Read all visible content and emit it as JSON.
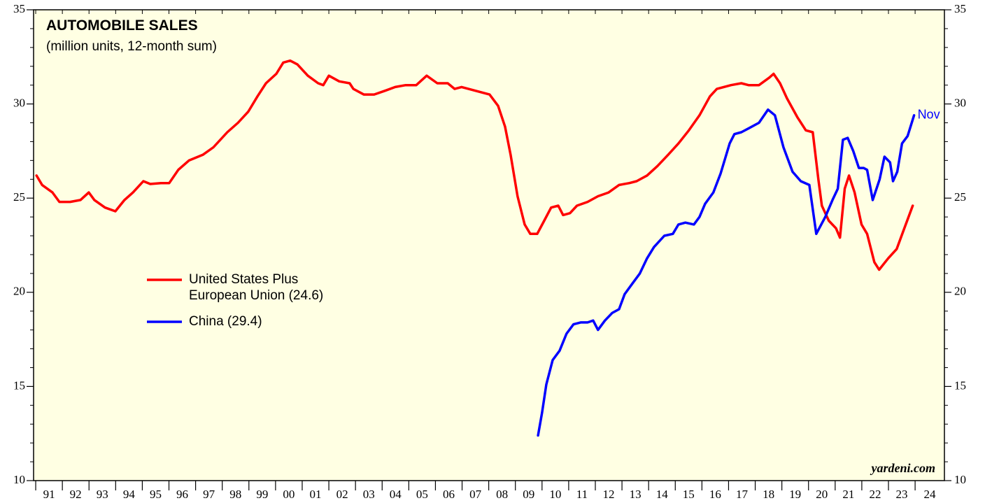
{
  "chart_data": {
    "type": "line",
    "title": "AUTOMOBILE SALES",
    "subtitle": "(million units, 12-month sum)",
    "annotation": "Nov",
    "source": "yardeni.com",
    "xlim": [
      1990.92,
      2025.1
    ],
    "xticks": [
      {
        "value": 1991,
        "label": "91"
      },
      {
        "value": 1992,
        "label": "92"
      },
      {
        "value": 1993,
        "label": "93"
      },
      {
        "value": 1994,
        "label": "94"
      },
      {
        "value": 1995,
        "label": "95"
      },
      {
        "value": 1996,
        "label": "96"
      },
      {
        "value": 1997,
        "label": "97"
      },
      {
        "value": 1998,
        "label": "98"
      },
      {
        "value": 1999,
        "label": "99"
      },
      {
        "value": 2000,
        "label": "00"
      },
      {
        "value": 2001,
        "label": "01"
      },
      {
        "value": 2002,
        "label": "02"
      },
      {
        "value": 2003,
        "label": "03"
      },
      {
        "value": 2004,
        "label": "04"
      },
      {
        "value": 2005,
        "label": "05"
      },
      {
        "value": 2006,
        "label": "06"
      },
      {
        "value": 2007,
        "label": "07"
      },
      {
        "value": 2008,
        "label": "08"
      },
      {
        "value": 2009,
        "label": "09"
      },
      {
        "value": 2010,
        "label": "10"
      },
      {
        "value": 2011,
        "label": "11"
      },
      {
        "value": 2012,
        "label": "12"
      },
      {
        "value": 2013,
        "label": "13"
      },
      {
        "value": 2014,
        "label": "14"
      },
      {
        "value": 2015,
        "label": "15"
      },
      {
        "value": 2016,
        "label": "16"
      },
      {
        "value": 2017,
        "label": "17"
      },
      {
        "value": 2018,
        "label": "18"
      },
      {
        "value": 2019,
        "label": "19"
      },
      {
        "value": 2020,
        "label": "20"
      },
      {
        "value": 2021,
        "label": "21"
      },
      {
        "value": 2022,
        "label": "22"
      },
      {
        "value": 2023,
        "label": "23"
      },
      {
        "value": 2024,
        "label": "24"
      }
    ],
    "ylim": [
      10,
      35
    ],
    "yticks": [
      10,
      15,
      20,
      25,
      30,
      35
    ],
    "series": [
      {
        "name": "United States Plus\nEuropean Union (24.6)",
        "color": "#ff0000",
        "x": [
          1991.03,
          1991.24,
          1991.63,
          1991.89,
          1992.29,
          1992.68,
          1992.99,
          1993.2,
          1993.6,
          1993.99,
          1994.33,
          1994.65,
          1995.04,
          1995.3,
          1995.7,
          1996.01,
          1996.35,
          1996.75,
          1997.27,
          1997.67,
          1998.19,
          1998.59,
          1998.98,
          1999.32,
          1999.64,
          2000.03,
          2000.29,
          2000.55,
          2000.82,
          2001.21,
          2001.6,
          2001.79,
          2002.0,
          2002.39,
          2002.78,
          2002.92,
          2003.31,
          2003.7,
          2004.1,
          2004.49,
          2004.88,
          2005.28,
          2005.67,
          2006.07,
          2006.46,
          2006.72,
          2006.98,
          2007.51,
          2008.03,
          2008.35,
          2008.61,
          2008.82,
          2009.08,
          2009.35,
          2009.56,
          2009.82,
          2010.08,
          2010.34,
          2010.61,
          2010.79,
          2011.05,
          2011.31,
          2011.71,
          2012.1,
          2012.5,
          2012.89,
          2013.28,
          2013.55,
          2013.94,
          2014.33,
          2014.73,
          2015.12,
          2015.51,
          2015.91,
          2016.3,
          2016.56,
          2017.09,
          2017.48,
          2017.75,
          2018.14,
          2018.53,
          2018.69,
          2018.93,
          2019.19,
          2019.58,
          2019.9,
          2020.16,
          2020.37,
          2020.5,
          2020.76,
          2021.03,
          2021.18,
          2021.36,
          2021.52,
          2021.73,
          2021.99,
          2022.2,
          2022.47,
          2022.65,
          2022.99,
          2023.31,
          2023.57,
          2023.91
        ],
        "values": [
          26.2,
          25.7,
          25.3,
          24.8,
          24.8,
          24.9,
          25.3,
          24.9,
          24.5,
          24.3,
          24.9,
          25.3,
          25.9,
          25.75,
          25.8,
          25.8,
          26.5,
          27.0,
          27.3,
          27.7,
          28.5,
          29.0,
          29.6,
          30.4,
          31.1,
          31.6,
          32.2,
          32.3,
          32.1,
          31.5,
          31.1,
          31.0,
          31.5,
          31.2,
          31.1,
          30.8,
          30.5,
          30.5,
          30.7,
          30.9,
          31.0,
          31.0,
          31.5,
          31.1,
          31.1,
          30.8,
          30.9,
          30.7,
          30.5,
          29.9,
          28.8,
          27.3,
          25.1,
          23.6,
          23.1,
          23.1,
          23.8,
          24.5,
          24.6,
          24.1,
          24.2,
          24.6,
          24.8,
          25.1,
          25.3,
          25.7,
          25.8,
          25.9,
          26.2,
          26.7,
          27.3,
          27.9,
          28.6,
          29.4,
          30.4,
          30.8,
          31.0,
          31.1,
          31.0,
          31.0,
          31.4,
          31.6,
          31.1,
          30.3,
          29.3,
          28.6,
          28.5,
          26.0,
          24.6,
          23.8,
          23.4,
          22.9,
          25.5,
          26.2,
          25.3,
          23.6,
          23.1,
          21.6,
          21.2,
          21.8,
          22.3,
          23.3,
          24.6
        ]
      },
      {
        "name": "China (29.4)",
        "color": "#0000ff",
        "x": [
          2009.85,
          2010.0,
          2010.16,
          2010.4,
          2010.66,
          2010.92,
          2011.18,
          2011.45,
          2011.71,
          2011.92,
          2012.1,
          2012.36,
          2012.63,
          2012.89,
          2013.1,
          2013.41,
          2013.67,
          2013.94,
          2014.2,
          2014.59,
          2014.91,
          2015.12,
          2015.38,
          2015.7,
          2015.91,
          2016.12,
          2016.43,
          2016.7,
          2017.04,
          2017.22,
          2017.48,
          2017.75,
          2018.14,
          2018.48,
          2018.74,
          2019.06,
          2019.4,
          2019.71,
          2020.03,
          2020.29,
          2020.63,
          2020.9,
          2021.1,
          2021.29,
          2021.47,
          2021.68,
          2021.89,
          2022.07,
          2022.2,
          2022.41,
          2022.67,
          2022.85,
          2023.06,
          2023.17,
          2023.33,
          2023.51,
          2023.72,
          2023.96
        ],
        "values": [
          12.4,
          13.6,
          15.1,
          16.4,
          16.9,
          17.8,
          18.3,
          18.4,
          18.4,
          18.5,
          18.0,
          18.5,
          18.9,
          19.1,
          19.9,
          20.5,
          21.0,
          21.8,
          22.4,
          23.0,
          23.1,
          23.6,
          23.7,
          23.6,
          24.0,
          24.7,
          25.3,
          26.3,
          27.9,
          28.4,
          28.5,
          28.7,
          29.0,
          29.7,
          29.4,
          27.7,
          26.4,
          25.9,
          25.7,
          23.1,
          24.0,
          24.9,
          25.5,
          28.1,
          28.2,
          27.5,
          26.6,
          26.6,
          26.5,
          24.9,
          26.0,
          27.2,
          26.9,
          25.9,
          26.4,
          27.9,
          28.3,
          29.4
        ]
      }
    ]
  }
}
